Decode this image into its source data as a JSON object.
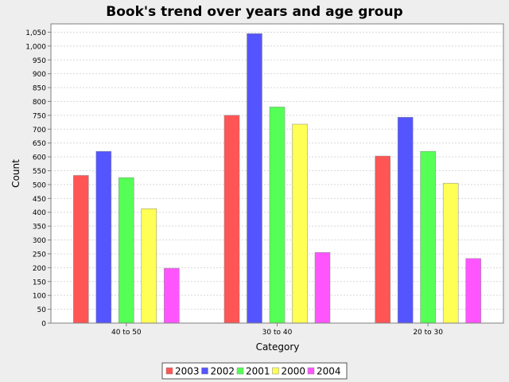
{
  "chart_data": {
    "type": "bar",
    "title": "Book's trend over years and age group",
    "xlabel": "Category",
    "ylabel": "Count",
    "categories": [
      "40 to 50",
      "30 to 40",
      "20 to 30"
    ],
    "series": [
      {
        "name": "2003",
        "color": "#ff5555",
        "values": [
          533,
          750,
          603
        ]
      },
      {
        "name": "2002",
        "color": "#5555ff",
        "values": [
          620,
          1045,
          743
        ]
      },
      {
        "name": "2001",
        "color": "#55ff55",
        "values": [
          525,
          780,
          620
        ]
      },
      {
        "name": "2000",
        "color": "#ffff55",
        "values": [
          413,
          718,
          505
        ]
      },
      {
        "name": "2004",
        "color": "#ff55ff",
        "values": [
          198,
          255,
          233
        ]
      }
    ],
    "ylim": [
      0,
      1080
    ],
    "yticks": [
      "0",
      "50",
      "100",
      "150",
      "200",
      "250",
      "300",
      "350",
      "400",
      "450",
      "500",
      "550",
      "600",
      "650",
      "700",
      "750",
      "800",
      "850",
      "900",
      "950",
      "1,000",
      "1,050"
    ],
    "grid": true,
    "legend_position": "bottom"
  }
}
